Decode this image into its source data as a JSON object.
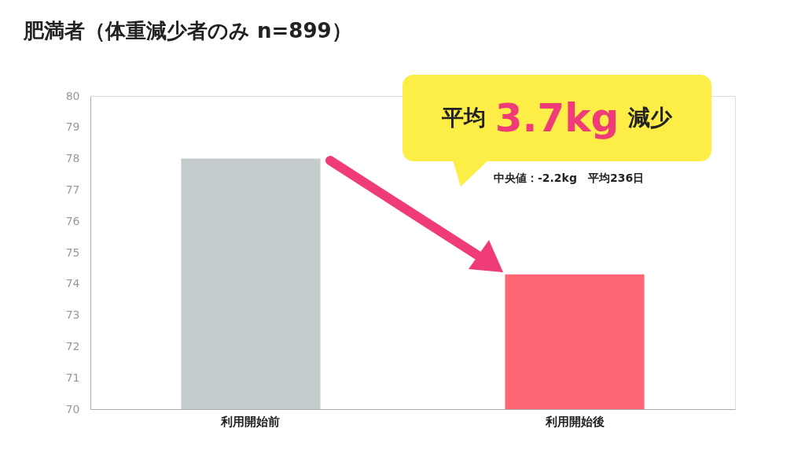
{
  "chart_data": {
    "type": "bar",
    "title": "肥満者（体重減少者のみ n=899）",
    "categories": [
      "利用開始前",
      "利用開始後"
    ],
    "values": [
      78.0,
      74.3
    ],
    "colors": [
      "#c5cccd",
      "#ff6674"
    ],
    "ylim": [
      70,
      80
    ],
    "yticks": [
      70,
      71,
      72,
      73,
      74,
      75,
      76,
      77,
      78,
      79,
      80
    ],
    "grid": false,
    "annotations": [
      "平均 3.7kg 減少",
      "中央値：-2.2kg　平均236日"
    ]
  }
}
